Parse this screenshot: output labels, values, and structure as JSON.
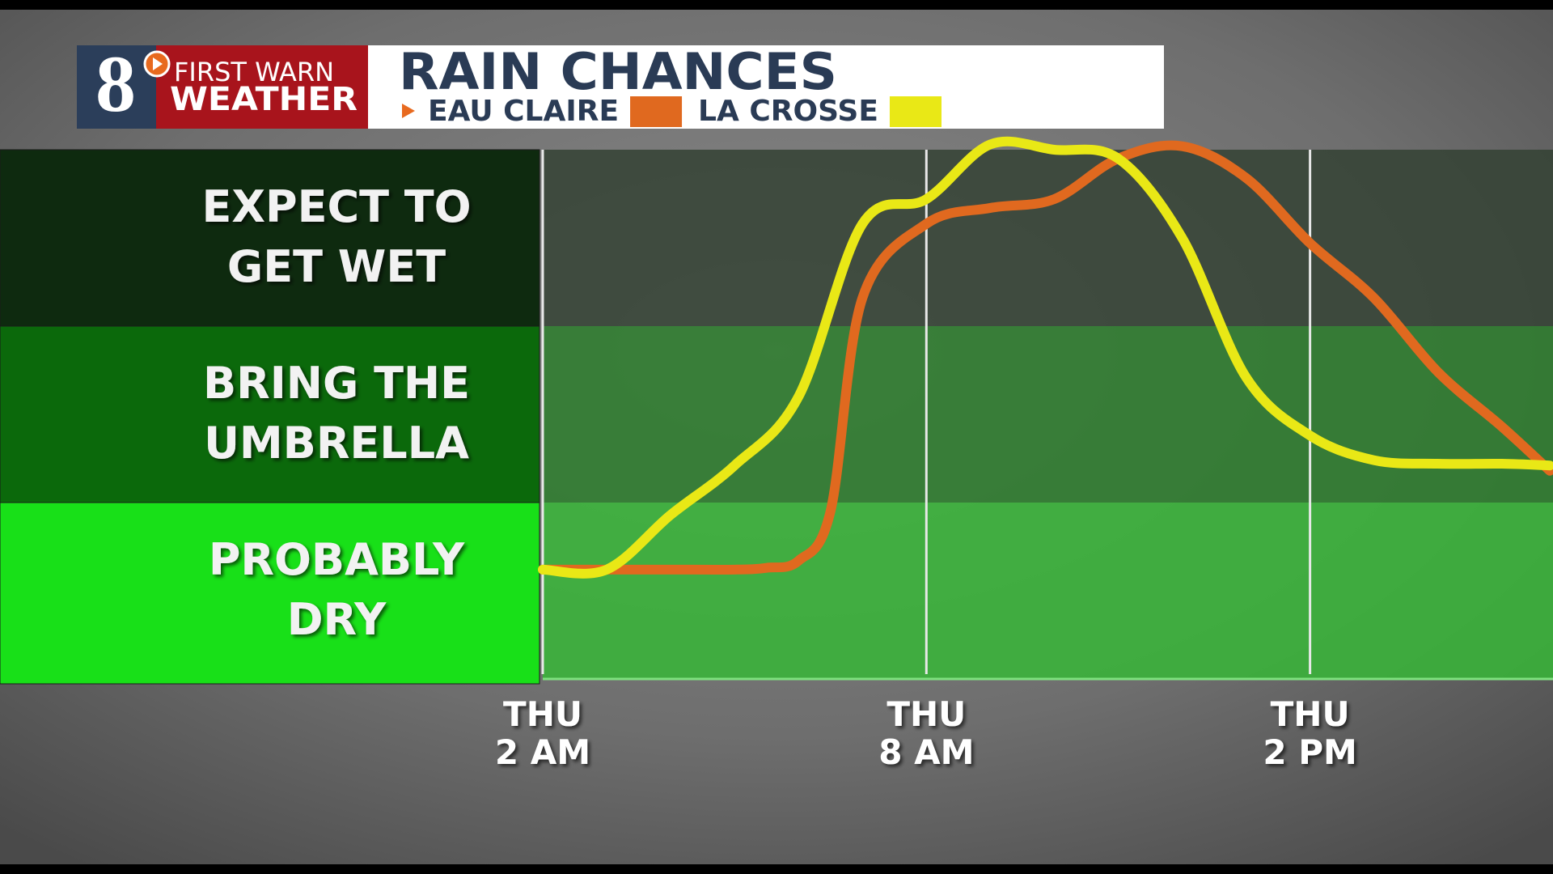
{
  "branding": {
    "channel": "8",
    "line1": "FIRST WARN",
    "line2": "WEATHER"
  },
  "chart_data": {
    "type": "line",
    "title": "RAIN CHANCES",
    "xlim": [
      2,
      17.8
    ],
    "ylim": [
      0,
      3.2
    ],
    "xticks": [
      {
        "value": 2,
        "label": [
          "THU",
          "2 AM"
        ]
      },
      {
        "value": 8,
        "label": [
          "THU",
          "8 AM"
        ]
      },
      {
        "value": 14,
        "label": [
          "THU",
          "2 PM"
        ]
      }
    ],
    "zones": [
      {
        "from": 2,
        "to": 3,
        "label": [
          "EXPECT TO",
          "GET WET"
        ],
        "color": "#0e2a0f",
        "plot_color": "#344234"
      },
      {
        "from": 1,
        "to": 2,
        "label": [
          "BRING THE",
          "UMBRELLA"
        ],
        "color": "#0b690b",
        "plot_color": "#2c7d2c"
      },
      {
        "from": 0,
        "to": 1,
        "label": [
          "PROBABLY",
          "DRY"
        ],
        "color": "#18e018",
        "plot_color": "#37b637"
      }
    ],
    "series": [
      {
        "name": "EAU CLAIRE",
        "color": "#e0691f",
        "x": [
          2,
          3,
          4,
          5,
          5.5,
          6,
          6.5,
          7,
          8,
          9,
          10,
          11,
          12,
          13,
          14,
          15,
          16,
          17,
          17.75
        ],
        "values": [
          0.62,
          0.62,
          0.62,
          0.62,
          0.63,
          0.67,
          0.95,
          2.16,
          2.58,
          2.67,
          2.72,
          2.95,
          3.02,
          2.84,
          2.47,
          2.16,
          1.74,
          1.43,
          1.18
        ]
      },
      {
        "name": "LA CROSSE",
        "color": "#e9e816",
        "x": [
          2,
          3,
          4,
          5,
          6,
          7,
          8,
          9,
          10,
          11,
          12,
          13,
          14,
          15,
          16,
          17,
          17.75
        ],
        "values": [
          0.62,
          0.62,
          0.93,
          1.21,
          1.6,
          2.58,
          2.72,
          3.03,
          3.0,
          2.95,
          2.5,
          1.71,
          1.38,
          1.24,
          1.22,
          1.22,
          1.21
        ]
      }
    ]
  }
}
